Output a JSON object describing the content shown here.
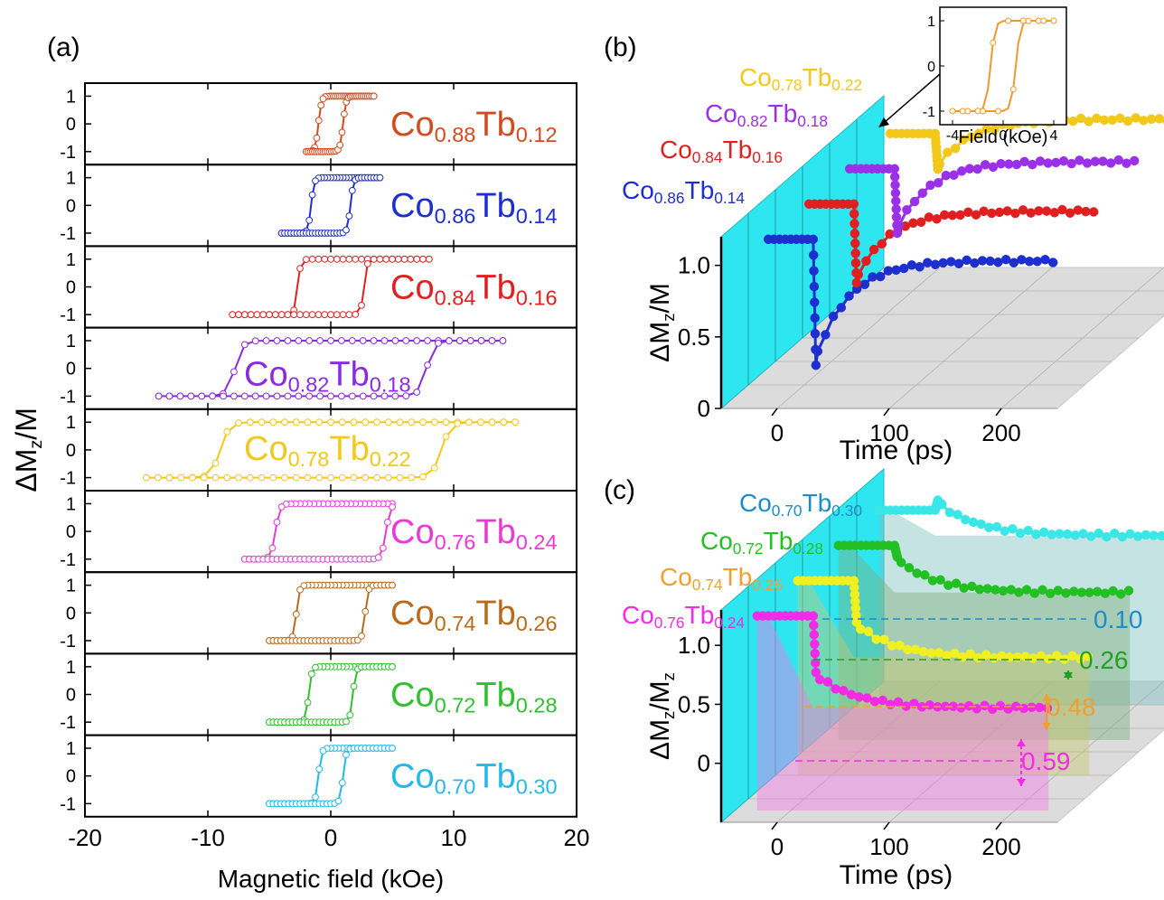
{
  "labels": {
    "panel_a": "(a)",
    "panel_b": "(b)",
    "panel_c": "(c)",
    "delta": "ΔM",
    "sub_z": "z",
    "over_m": "/M",
    "over_mz": "/M",
    "sub_z2": "z",
    "xlabel_a": "Magnetic field (kOe)",
    "xlabel_time": "Time (ps)",
    "inset_xlabel": "Field (kOe)"
  },
  "chart_data": [
    {
      "type": "line",
      "panel": "(a)",
      "xlabel": "Magnetic field (kOe)",
      "ylabel": "ΔMz/M",
      "xlim": [
        -20,
        20
      ],
      "ylim": [
        -1.5,
        1.5
      ],
      "x_ticks": [
        "-20",
        "-10",
        "0",
        "10",
        "20"
      ],
      "y_ticks": [
        "1",
        "0",
        "-1"
      ],
      "series": [
        {
          "name": "Co0.88Tb0.12",
          "co": "0.88",
          "tb": "0.12",
          "color": "#d24a1e",
          "hc": 1.0,
          "xmin": -2.0,
          "xmax": 3.5
        },
        {
          "name": "Co0.86Tb0.14",
          "co": "0.86",
          "tb": "0.14",
          "color": "#1e2fd0",
          "hc": 1.6,
          "xmin": -4.0,
          "xmax": 4.0
        },
        {
          "name": "Co0.84Tb0.16",
          "co": "0.84",
          "tb": "0.16",
          "color": "#e02020",
          "hc": 2.7,
          "xmin": -8.0,
          "xmax": 8.0
        },
        {
          "name": "Co0.82Tb0.18",
          "co": "0.82",
          "tb": "0.18",
          "color": "#8a2be2",
          "hc": 7.8,
          "xmin": -14.0,
          "xmax": 14.0
        },
        {
          "name": "Co0.78Tb0.22",
          "co": "0.78",
          "tb": "0.22",
          "color": "#f2c81a",
          "hc": 9.0,
          "xmin": -15.0,
          "xmax": 15.0
        },
        {
          "name": "Co0.76Tb0.24",
          "co": "0.76",
          "tb": "0.24",
          "color": "#e83ad6",
          "hc": 4.5,
          "xmin": -7.0,
          "xmax": 5.0
        },
        {
          "name": "Co0.74Tb0.26",
          "co": "0.74",
          "tb": "0.26",
          "color": "#b86b1c",
          "hc": 2.8,
          "xmin": -5.0,
          "xmax": 5.0
        },
        {
          "name": "Co0.72Tb0.28",
          "co": "0.72",
          "tb": "0.28",
          "color": "#2ec02e",
          "hc": 1.8,
          "xmin": -5.0,
          "xmax": 5.0
        },
        {
          "name": "Co0.70Tb0.30",
          "co": "0.70",
          "tb": "0.30",
          "color": "#22b8ea",
          "hc": 1.0,
          "xmin": -5.0,
          "xmax": 5.0
        }
      ]
    },
    {
      "type": "line",
      "panel": "(b)",
      "xlabel": "Time (ps)",
      "ylabel": "ΔMz/M",
      "x_ticks": [
        "0",
        "100",
        "200"
      ],
      "y_ticks": [
        "0",
        "0.5",
        "1.0"
      ],
      "xlim": [
        -50,
        250
      ],
      "ylim": [
        0,
        1.2
      ],
      "series": [
        {
          "name": "Co0.86Tb0.14",
          "co": "0.86",
          "tb": "0.14",
          "color": "#1e2fd0",
          "dip": 0.22,
          "final": 0.95
        },
        {
          "name": "Co0.84Tb0.16",
          "co": "0.84",
          "tb": "0.16",
          "color": "#e02020",
          "dip": 0.55,
          "final": 1.05
        },
        {
          "name": "Co0.82Tb0.18",
          "co": "0.82",
          "tb": "0.18",
          "color": "#9a30e8",
          "dip": 0.65,
          "final": 1.15
        },
        {
          "name": "Co0.78Tb0.22",
          "co": "0.78",
          "tb": "0.22",
          "color": "#f2c81a",
          "dip": 0.85,
          "final": 1.2
        }
      ],
      "inset": {
        "xlabel": "Field (kOe)",
        "x_ticks": [
          "-4",
          "0",
          "4"
        ],
        "y_ticks": [
          "1",
          "0",
          "-1"
        ],
        "xlim": [
          -5,
          5
        ],
        "ylim": [
          -1.3,
          1.3
        ],
        "color": "#f0982e",
        "hc": 1.0
      }
    },
    {
      "type": "line",
      "panel": "(c)",
      "xlabel": "Time (ps)",
      "ylabel": "ΔMz/Mz",
      "x_ticks": [
        "0",
        "100",
        "200"
      ],
      "y_ticks": [
        "0",
        "0.5",
        "1.0"
      ],
      "xlim": [
        -50,
        250
      ],
      "ylim": [
        -0.5,
        1.3
      ],
      "series": [
        {
          "name": "Co0.76Tb0.24",
          "co": "0.76",
          "tb": "0.24",
          "color": "#f22ce6",
          "final": 0.59,
          "fill": "#f27ae6"
        },
        {
          "name": "Co0.74Tb0.26",
          "co": "0.74",
          "tb": "0.26",
          "color": "#f0f020",
          "label_color": "#f0a030",
          "final": 0.48,
          "fill": "#c8c86e"
        },
        {
          "name": "Co0.72Tb0.28",
          "co": "0.72",
          "tb": "0.28",
          "color": "#22c022",
          "final": 0.26,
          "fill": "#7eb07e"
        },
        {
          "name": "Co0.70Tb0.30",
          "co": "0.70",
          "tb": "0.30",
          "color": "#3ae6e6",
          "label_color": "#1e8cc8",
          "final": 0.1,
          "fill": "#80c0c0"
        }
      ],
      "annotations": [
        {
          "text": "0.10",
          "color": "#1e8cc8"
        },
        {
          "text": "0.26",
          "color": "#22a022"
        },
        {
          "text": "0.48",
          "color": "#f0a030"
        },
        {
          "text": "0.59",
          "color": "#f22ce6"
        }
      ]
    }
  ]
}
